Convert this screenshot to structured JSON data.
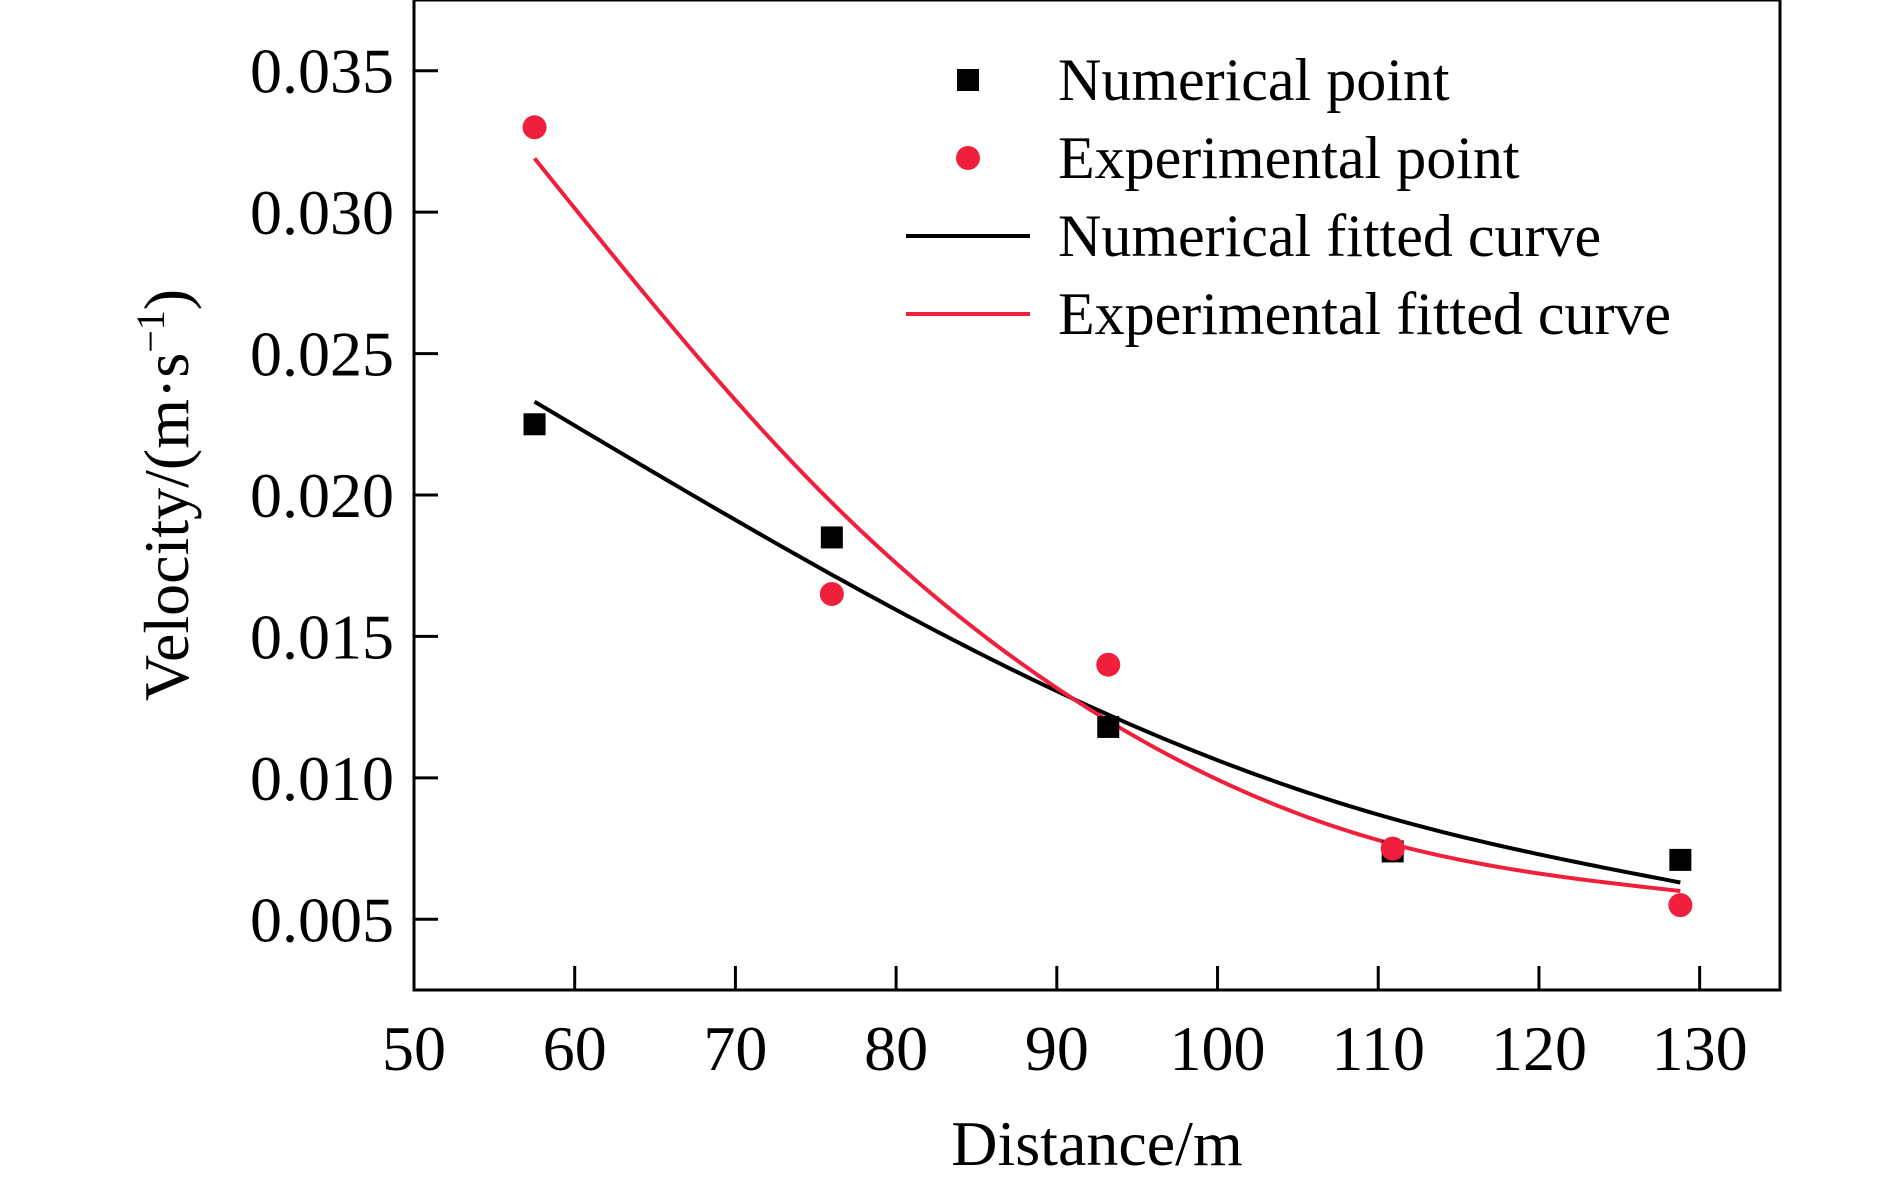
{
  "chart_data": {
    "type": "scatter",
    "xlabel": "Distance/m",
    "ylabel": {
      "main": "Velocity/(m·s",
      "superscript": "−1",
      "closing": ")"
    },
    "xlim": [
      50,
      135
    ],
    "ylim": [
      0.0025,
      0.0375
    ],
    "x_ticks": [
      50,
      60,
      70,
      80,
      90,
      100,
      110,
      120,
      130
    ],
    "x_tick_labels": [
      "50",
      "60",
      "70",
      "80",
      "90",
      "100",
      "110",
      "120",
      "130"
    ],
    "y_ticks": [
      0.005,
      0.01,
      0.015,
      0.02,
      0.025,
      0.03,
      0.035
    ],
    "y_tick_labels": [
      "0.005",
      "0.010",
      "0.015",
      "0.020",
      "0.025",
      "0.030",
      "0.035"
    ],
    "grid": false,
    "legend_position": "top-right",
    "series": [
      {
        "name": "Numerical point",
        "kind": "points",
        "marker": "square",
        "color": "#000000",
        "x": [
          57.5,
          76,
          93.2,
          110.9,
          128.8
        ],
        "y": [
          0.0225,
          0.0185,
          0.0118,
          0.0074,
          0.0071
        ]
      },
      {
        "name": "Experimental point",
        "kind": "points",
        "marker": "circle",
        "color": "#f0203c",
        "x": [
          57.5,
          76,
          93.2,
          110.9,
          128.8
        ],
        "y": [
          0.033,
          0.0165,
          0.014,
          0.0075,
          0.0055
        ]
      },
      {
        "name": "Numerical fitted curve",
        "kind": "line",
        "color": "#000000",
        "x": [
          57.5,
          75,
          91,
          110,
          128.8
        ],
        "y": [
          0.0233,
          0.0175,
          0.0128,
          0.0087,
          0.0063
        ]
      },
      {
        "name": "Experimental fitted curve",
        "kind": "line",
        "color": "#f0203c",
        "x": [
          57.5,
          75,
          91,
          110,
          128.8
        ],
        "y": [
          0.0319,
          0.0203,
          0.0128,
          0.0078,
          0.006
        ]
      }
    ]
  }
}
